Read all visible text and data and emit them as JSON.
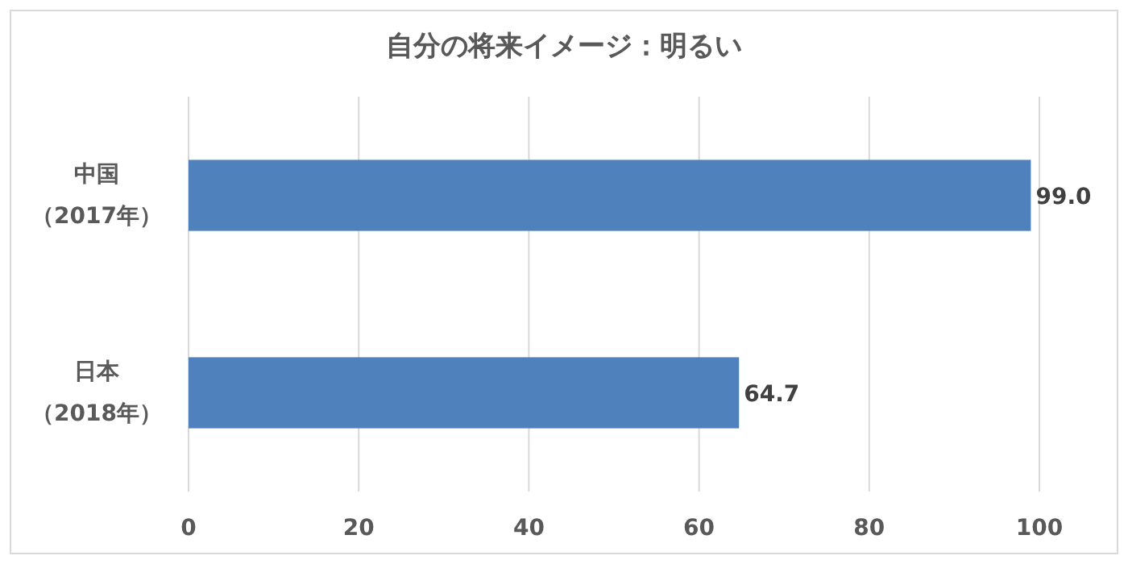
{
  "chart_data": {
    "type": "bar",
    "orientation": "horizontal",
    "title": "自分の将来イメージ：明るい",
    "categories": [
      "中国（2017年）",
      "日本（2018年）"
    ],
    "values": [
      99.0,
      64.7
    ],
    "value_labels": [
      "99.0",
      "64.7"
    ],
    "color": "#4f81bd",
    "xlim": [
      0,
      100
    ],
    "xticks": [
      0,
      20,
      40,
      60,
      80,
      100
    ],
    "grid": "x"
  }
}
